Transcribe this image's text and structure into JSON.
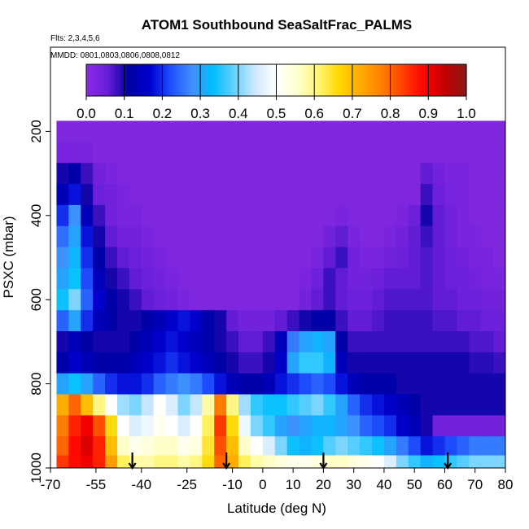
{
  "chart_data": {
    "type": "heatmap",
    "title": "ATOM1 Southbound SeaSaltFrac_PALMS",
    "flights_note": "Flts: 2,3,4,5,6",
    "dates_note": "MMDD: 0801,0803,0806,0808,0812",
    "xlabel": "Latitude (deg N)",
    "ylabel": "PSXC (mbar)",
    "xlim": [
      -70,
      80
    ],
    "ylim": [
      1000,
      0
    ],
    "x_ticks": [
      -70,
      -55,
      -40,
      -25,
      -10,
      0,
      10,
      20,
      30,
      40,
      50,
      60,
      70,
      80
    ],
    "x_tick_labels": [
      "-70",
      "-55",
      "-40",
      "-25",
      "-10",
      "0",
      "10",
      "20",
      "30",
      "40",
      "50",
      "60",
      "70",
      "80"
    ],
    "y_ticks": [
      200,
      400,
      600,
      800,
      1000
    ],
    "y_tick_labels": [
      "200",
      "400",
      "600",
      "800",
      "1000"
    ],
    "colorbar": {
      "range": [
        0.0,
        1.0
      ],
      "tick_labels": [
        "0.0",
        "0.1",
        "0.2",
        "0.3",
        "0.4",
        "0.5",
        "0.6",
        "0.7",
        "0.8",
        "0.9",
        "1.0"
      ],
      "colors": [
        "#8a2be2",
        "#6a1fd8",
        "#0000a0",
        "#0000d0",
        "#1f4fff",
        "#3f8fff",
        "#00bfff",
        "#66d0ff",
        "#cde8ff",
        "#ffffff",
        "#ffffd0",
        "#fff570",
        "#ffd700",
        "#ffaa00",
        "#ff7f00",
        "#ff4000",
        "#ff0000",
        "#c00000",
        "#8b1a1a"
      ]
    },
    "latitude_bins": [
      -66,
      -62,
      -58,
      -54,
      -50,
      -46,
      -42,
      -38,
      -34,
      -30,
      -26,
      -22,
      -18,
      -14,
      -10,
      -6,
      -2,
      2,
      6,
      10,
      14,
      18,
      22,
      26,
      30,
      34,
      38,
      42,
      46,
      50,
      54,
      58,
      62,
      66,
      70,
      74,
      78
    ],
    "pressure_bins": [
      200,
      250,
      300,
      350,
      400,
      450,
      500,
      550,
      600,
      650,
      700,
      750,
      800,
      850,
      900,
      950,
      990
    ],
    "grid": [
      [
        0.02,
        0.02,
        0.02,
        0.02,
        0.02,
        0.02,
        0.02,
        0.02,
        0.02,
        0.02,
        0.02,
        0.02,
        0.02,
        0.02,
        0.02,
        0.02,
        0.02,
        0.02,
        0.02,
        0.02,
        0.02,
        0.02,
        0.02,
        0.02,
        0.02,
        0.02,
        0.02,
        0.02,
        0.02,
        0.02,
        0.02,
        0.02,
        0.02,
        0.02,
        0.02,
        0.02,
        0.02
      ],
      [
        0.03,
        0.03,
        0.03,
        0.02,
        0.02,
        0.02,
        0.02,
        0.02,
        0.02,
        0.02,
        0.02,
        0.02,
        0.02,
        0.02,
        0.02,
        0.02,
        0.02,
        0.02,
        0.02,
        0.02,
        0.02,
        0.02,
        0.02,
        0.02,
        0.02,
        0.02,
        0.02,
        0.02,
        0.02,
        0.02,
        0.02,
        0.02,
        0.02,
        0.02,
        0.02,
        0.02,
        0.02
      ],
      [
        0.1,
        0.12,
        0.08,
        0.04,
        0.03,
        0.02,
        0.02,
        0.02,
        0.02,
        0.02,
        0.02,
        0.02,
        0.02,
        0.02,
        0.02,
        0.02,
        0.02,
        0.02,
        0.02,
        0.02,
        0.02,
        0.02,
        0.02,
        0.02,
        0.02,
        0.02,
        0.02,
        0.02,
        0.02,
        0.02,
        0.06,
        0.04,
        0.03,
        0.03,
        0.02,
        0.02,
        0.02
      ],
      [
        0.14,
        0.18,
        0.1,
        0.05,
        0.04,
        0.03,
        0.02,
        0.02,
        0.02,
        0.02,
        0.02,
        0.02,
        0.02,
        0.02,
        0.02,
        0.02,
        0.02,
        0.02,
        0.02,
        0.02,
        0.02,
        0.02,
        0.02,
        0.02,
        0.02,
        0.02,
        0.02,
        0.02,
        0.02,
        0.02,
        0.08,
        0.05,
        0.03,
        0.03,
        0.02,
        0.02,
        0.02
      ],
      [
        0.2,
        0.28,
        0.14,
        0.08,
        0.04,
        0.03,
        0.03,
        0.02,
        0.02,
        0.02,
        0.02,
        0.02,
        0.02,
        0.02,
        0.02,
        0.02,
        0.02,
        0.02,
        0.02,
        0.02,
        0.02,
        0.02,
        0.02,
        0.03,
        0.02,
        0.02,
        0.02,
        0.02,
        0.03,
        0.05,
        0.1,
        0.06,
        0.04,
        0.03,
        0.02,
        0.02,
        0.02
      ],
      [
        0.25,
        0.3,
        0.18,
        0.1,
        0.06,
        0.04,
        0.04,
        0.03,
        0.02,
        0.02,
        0.02,
        0.02,
        0.02,
        0.02,
        0.02,
        0.02,
        0.02,
        0.02,
        0.02,
        0.02,
        0.02,
        0.02,
        0.04,
        0.06,
        0.03,
        0.02,
        0.02,
        0.03,
        0.04,
        0.06,
        0.08,
        0.06,
        0.04,
        0.03,
        0.03,
        0.02,
        0.02
      ],
      [
        0.28,
        0.32,
        0.2,
        0.12,
        0.08,
        0.06,
        0.05,
        0.04,
        0.03,
        0.02,
        0.02,
        0.02,
        0.02,
        0.02,
        0.02,
        0.02,
        0.02,
        0.02,
        0.02,
        0.02,
        0.02,
        0.03,
        0.06,
        0.08,
        0.04,
        0.03,
        0.03,
        0.04,
        0.05,
        0.06,
        0.07,
        0.06,
        0.05,
        0.04,
        0.03,
        0.03,
        0.02
      ],
      [
        0.3,
        0.34,
        0.22,
        0.14,
        0.1,
        0.08,
        0.06,
        0.05,
        0.04,
        0.03,
        0.02,
        0.02,
        0.02,
        0.02,
        0.02,
        0.02,
        0.02,
        0.02,
        0.02,
        0.02,
        0.03,
        0.05,
        0.08,
        0.06,
        0.04,
        0.04,
        0.05,
        0.06,
        0.06,
        0.06,
        0.07,
        0.06,
        0.05,
        0.05,
        0.04,
        0.03,
        0.03
      ],
      [
        0.34,
        0.4,
        0.24,
        0.16,
        0.12,
        0.1,
        0.08,
        0.06,
        0.05,
        0.04,
        0.03,
        0.02,
        0.02,
        0.02,
        0.02,
        0.02,
        0.02,
        0.02,
        0.02,
        0.02,
        0.04,
        0.06,
        0.08,
        0.06,
        0.05,
        0.05,
        0.06,
        0.07,
        0.07,
        0.07,
        0.07,
        0.06,
        0.06,
        0.05,
        0.05,
        0.04,
        0.04
      ],
      [
        0.24,
        0.3,
        0.2,
        0.14,
        0.12,
        0.1,
        0.1,
        0.12,
        0.14,
        0.16,
        0.18,
        0.16,
        0.12,
        0.1,
        0.06,
        0.04,
        0.04,
        0.04,
        0.06,
        0.08,
        0.1,
        0.12,
        0.12,
        0.08,
        0.06,
        0.06,
        0.07,
        0.08,
        0.08,
        0.08,
        0.08,
        0.07,
        0.07,
        0.06,
        0.06,
        0.05,
        0.05
      ],
      [
        0.1,
        0.14,
        0.12,
        0.1,
        0.1,
        0.1,
        0.12,
        0.14,
        0.16,
        0.18,
        0.16,
        0.14,
        0.12,
        0.1,
        0.08,
        0.06,
        0.06,
        0.08,
        0.14,
        0.26,
        0.3,
        0.32,
        0.3,
        0.12,
        0.08,
        0.08,
        0.08,
        0.08,
        0.08,
        0.08,
        0.08,
        0.08,
        0.08,
        0.08,
        0.07,
        0.07,
        0.06
      ],
      [
        0.12,
        0.16,
        0.14,
        0.12,
        0.12,
        0.12,
        0.14,
        0.16,
        0.18,
        0.2,
        0.18,
        0.16,
        0.14,
        0.12,
        0.1,
        0.08,
        0.08,
        0.1,
        0.16,
        0.3,
        0.36,
        0.36,
        0.32,
        0.14,
        0.1,
        0.1,
        0.1,
        0.1,
        0.1,
        0.1,
        0.1,
        0.1,
        0.1,
        0.1,
        0.09,
        0.09,
        0.08
      ],
      [
        0.3,
        0.34,
        0.3,
        0.24,
        0.2,
        0.18,
        0.18,
        0.2,
        0.24,
        0.26,
        0.28,
        0.26,
        0.22,
        0.18,
        0.14,
        0.12,
        0.12,
        0.14,
        0.18,
        0.2,
        0.22,
        0.24,
        0.22,
        0.18,
        0.14,
        0.12,
        0.12,
        0.12,
        0.1,
        0.1,
        0.1,
        0.1,
        0.1,
        0.1,
        0.1,
        0.1,
        0.1
      ],
      [
        0.72,
        0.8,
        0.7,
        0.6,
        0.5,
        0.42,
        0.4,
        0.44,
        0.5,
        0.46,
        0.4,
        0.44,
        0.58,
        0.78,
        0.6,
        0.42,
        0.36,
        0.34,
        0.34,
        0.36,
        0.38,
        0.4,
        0.36,
        0.3,
        0.24,
        0.2,
        0.18,
        0.16,
        0.14,
        0.12,
        0.1,
        0.1,
        0.1,
        0.1,
        0.1,
        0.1,
        0.1
      ],
      [
        0.78,
        0.86,
        0.9,
        0.82,
        0.66,
        0.5,
        0.46,
        0.48,
        0.52,
        0.5,
        0.46,
        0.5,
        0.62,
        0.84,
        0.66,
        0.48,
        0.4,
        0.36,
        0.3,
        0.28,
        0.3,
        0.32,
        0.32,
        0.3,
        0.28,
        0.24,
        0.22,
        0.2,
        0.16,
        0.14,
        0.1,
        0.04,
        0.04,
        0.04,
        0.04,
        0.04,
        0.04
      ],
      [
        0.8,
        0.88,
        0.92,
        0.86,
        0.7,
        0.56,
        0.52,
        0.54,
        0.56,
        0.56,
        0.52,
        0.54,
        0.64,
        0.82,
        0.7,
        0.56,
        0.5,
        0.46,
        0.4,
        0.34,
        0.32,
        0.34,
        0.38,
        0.4,
        0.38,
        0.36,
        0.34,
        0.3,
        0.26,
        0.22,
        0.18,
        0.2,
        0.22,
        0.24,
        0.26,
        0.26,
        0.26
      ],
      [
        0.84,
        0.88,
        0.9,
        0.86,
        0.74,
        0.62,
        0.58,
        0.58,
        0.6,
        0.6,
        0.58,
        0.6,
        0.66,
        0.8,
        0.72,
        0.62,
        0.58,
        0.56,
        0.54,
        0.52,
        0.52,
        0.54,
        0.56,
        0.56,
        0.54,
        0.52,
        0.5,
        0.46,
        0.4,
        0.36,
        0.32,
        0.34,
        0.36,
        0.38,
        0.4,
        0.4,
        0.4
      ]
    ],
    "profile_markers": [
      -43,
      -12,
      20,
      61
    ]
  }
}
